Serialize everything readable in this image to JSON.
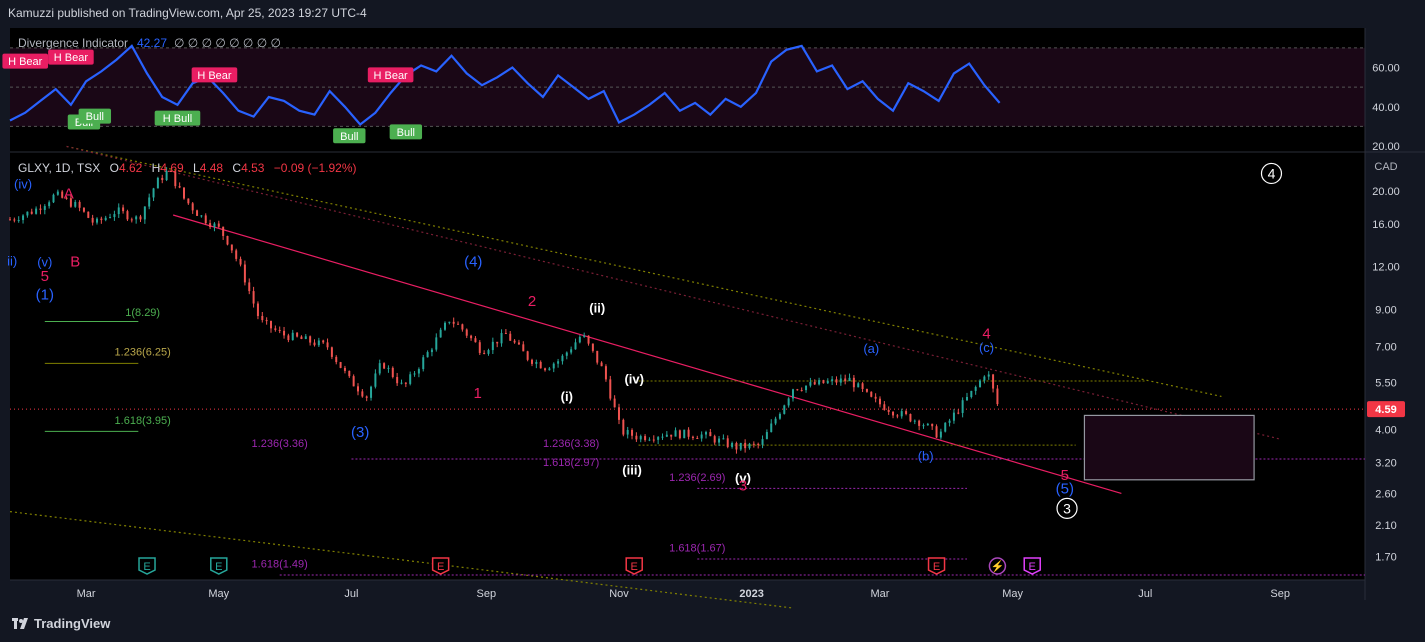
{
  "header": {
    "published": "Kamuzzi published on TradingView.com, Apr 25, 2023 19:27 UTC-4"
  },
  "footer": {
    "brand": "TradingView"
  },
  "colors": {
    "background": "#131722",
    "chart_bg": "#000000",
    "rsi_line": "#2962ff",
    "bear": "#e91e63",
    "bull": "#4caf50",
    "wave_blue": "#2962ff",
    "wave_red": "#e91e63",
    "wave_white": "#ffffff",
    "fib_green": "#4caf50",
    "fib_olive": "#808000",
    "fib_purple": "#9c27b0",
    "price_label": "#f23645"
  },
  "chart_data": [
    {
      "type": "line",
      "name": "Divergence Indicator",
      "title": "Divergence Indicator",
      "value_label": "42.27",
      "extra_values": [
        "∅",
        "∅",
        "∅",
        "∅",
        "∅",
        "∅",
        "∅",
        "∅"
      ],
      "y_ticks": [
        "60.00",
        "40.00",
        "20.00"
      ],
      "ylim": [
        18,
        74
      ],
      "levels": [
        70,
        50,
        30
      ],
      "x": [
        "2022-01-25",
        "2022-02-01",
        "2022-02-08",
        "2022-02-15",
        "2022-02-22",
        "2022-03-01",
        "2022-03-08",
        "2022-03-15",
        "2022-03-22",
        "2022-03-29",
        "2022-04-05",
        "2022-04-12",
        "2022-04-19",
        "2022-04-26",
        "2022-05-03",
        "2022-05-10",
        "2022-05-17",
        "2022-05-24",
        "2022-05-31",
        "2022-06-07",
        "2022-06-14",
        "2022-06-21",
        "2022-06-28",
        "2022-07-05",
        "2022-07-12",
        "2022-07-19",
        "2022-07-26",
        "2022-08-02",
        "2022-08-09",
        "2022-08-16",
        "2022-08-23",
        "2022-08-30",
        "2022-09-06",
        "2022-09-13",
        "2022-09-20",
        "2022-09-27",
        "2022-10-04",
        "2022-10-11",
        "2022-10-18",
        "2022-10-25",
        "2022-11-01",
        "2022-11-08",
        "2022-11-15",
        "2022-11-22",
        "2022-11-29",
        "2022-12-06",
        "2022-12-13",
        "2022-12-20",
        "2022-12-27",
        "2023-01-03",
        "2023-01-10",
        "2023-01-17",
        "2023-01-24",
        "2023-01-31",
        "2023-02-07",
        "2023-02-14",
        "2023-02-21",
        "2023-02-28",
        "2023-03-07",
        "2023-03-14",
        "2023-03-21",
        "2023-03-28",
        "2023-04-04",
        "2023-04-11",
        "2023-04-18",
        "2023-04-25"
      ],
      "values": [
        33,
        37,
        43,
        49,
        41,
        53,
        58,
        64,
        71,
        57,
        45,
        41,
        52,
        55,
        47,
        38,
        35,
        45,
        43,
        38,
        36,
        48,
        40,
        31,
        37,
        47,
        56,
        61,
        58,
        66,
        57,
        51,
        55,
        60,
        52,
        45,
        56,
        50,
        44,
        48,
        32,
        36,
        41,
        47,
        38,
        42,
        36,
        44,
        40,
        47,
        63,
        69,
        71,
        58,
        61,
        49,
        53,
        44,
        38,
        52,
        48,
        43,
        57,
        62,
        51,
        42
      ],
      "signals": [
        {
          "label": "H Bear",
          "type": "bear",
          "x": "2022-02-01",
          "y": 63
        },
        {
          "label": "H Bear",
          "type": "bear",
          "x": "2022-02-22",
          "y": 65
        },
        {
          "label": "Bull",
          "type": "bull",
          "x": "2022-02-28",
          "y": 32
        },
        {
          "label": "Bull",
          "type": "bull",
          "x": "2022-03-05",
          "y": 35
        },
        {
          "label": "H Bull",
          "type": "bull",
          "x": "2022-04-12",
          "y": 34
        },
        {
          "label": "H Bear",
          "type": "bear",
          "x": "2022-04-29",
          "y": 56
        },
        {
          "label": "H Bear",
          "type": "bear",
          "x": "2022-07-19",
          "y": 56
        },
        {
          "label": "Bull",
          "type": "bull",
          "x": "2022-06-30",
          "y": 25
        },
        {
          "label": "Bull",
          "type": "bull",
          "x": "2022-07-26",
          "y": 27
        }
      ]
    },
    {
      "type": "candlestick",
      "symbol_header": {
        "symbol": "GLXY, 1D, TSX",
        "o_label": "O",
        "o": "4.62",
        "h_label": "H",
        "h": "4.69",
        "l_label": "L",
        "l": "4.48",
        "c_label": "C",
        "c": "4.53",
        "change": "−0.09 (−1.92%)"
      },
      "currency": "CAD",
      "y_scale": "log",
      "ylim": [
        1.45,
        26
      ],
      "y_ticks": [
        "20.00",
        "16.00",
        "12.00",
        "9.00",
        "7.00",
        "5.50",
        "4.00",
        "3.20",
        "2.60",
        "2.10",
        "1.70"
      ],
      "last_price": "4.59",
      "x_ticks": [
        "Mar",
        "May",
        "Jul",
        "Sep",
        "Nov",
        "2023",
        "Mar",
        "May",
        "Jul",
        "Sep"
      ],
      "x_range": [
        "2022-01-25",
        "2023-10-10"
      ],
      "close_path": {
        "x": [
          "2022-01-25",
          "2022-02-05",
          "2022-02-15",
          "2022-02-25",
          "2022-03-05",
          "2022-03-15",
          "2022-03-25",
          "2022-04-02",
          "2022-04-08",
          "2022-04-15",
          "2022-04-22",
          "2022-05-01",
          "2022-05-06",
          "2022-05-12",
          "2022-05-20",
          "2022-05-30",
          "2022-06-10",
          "2022-06-20",
          "2022-06-30",
          "2022-07-08",
          "2022-07-15",
          "2022-07-25",
          "2022-08-05",
          "2022-08-15",
          "2022-08-20",
          "2022-08-30",
          "2022-09-10",
          "2022-09-20",
          "2022-09-28",
          "2022-10-05",
          "2022-10-15",
          "2022-10-25",
          "2022-11-02",
          "2022-11-10",
          "2022-11-25",
          "2022-12-10",
          "2022-12-25",
          "2023-01-05",
          "2023-01-20",
          "2023-02-05",
          "2023-02-15",
          "2023-02-25",
          "2023-03-08",
          "2023-03-20",
          "2023-03-28",
          "2023-04-05",
          "2023-04-15",
          "2023-04-19",
          "2023-04-25"
        ],
        "values": [
          16.5,
          17.5,
          19.5,
          18.0,
          16.0,
          17.5,
          16.5,
          21.0,
          23.0,
          19.0,
          17.0,
          15.5,
          14.0,
          11.5,
          8.3,
          7.6,
          7.3,
          7.0,
          5.6,
          5.0,
          6.3,
          5.3,
          6.7,
          8.4,
          8.0,
          6.8,
          7.6,
          6.5,
          6.1,
          6.4,
          7.6,
          5.9,
          3.95,
          3.8,
          3.9,
          3.85,
          3.55,
          3.6,
          5.3,
          5.5,
          5.6,
          4.9,
          4.5,
          4.2,
          3.85,
          4.5,
          5.4,
          6.0,
          4.53
        ]
      }
    }
  ],
  "annotations": {
    "waves": [
      {
        "text": "(iv)",
        "color": "blue",
        "x": "2022-01-31",
        "p": 20.3
      },
      {
        "text": "A",
        "color": "red",
        "x": "2022-02-21",
        "p": 19.0
      },
      {
        "text": "ii)",
        "color": "blue",
        "x": "2022-01-26",
        "p": 12.1
      },
      {
        "text": "(v)",
        "color": "blue",
        "x": "2022-02-10",
        "p": 12.0
      },
      {
        "text": "B",
        "color": "red",
        "x": "2022-02-24",
        "p": 12.0
      },
      {
        "text": "5",
        "color": "red",
        "x": "2022-02-10",
        "p": 10.9
      },
      {
        "text": "(1)",
        "color": "blue",
        "x": "2022-02-10",
        "p": 9.6
      },
      {
        "text": "(4)",
        "color": "blue",
        "x": "2022-08-26",
        "p": 12.0
      },
      {
        "text": "2",
        "color": "red",
        "x": "2022-09-22",
        "p": 9.2
      },
      {
        "text": "(ii)",
        "color": "white",
        "x": "2022-10-22",
        "p": 8.8
      },
      {
        "text": "1",
        "color": "red",
        "x": "2022-08-28",
        "p": 4.95
      },
      {
        "text": "(i)",
        "color": "white",
        "x": "2022-10-08",
        "p": 4.85
      },
      {
        "text": "(iv)",
        "color": "white",
        "x": "2022-11-08",
        "p": 5.45
      },
      {
        "text": "(3)",
        "color": "blue",
        "x": "2022-07-05",
        "p": 3.8
      },
      {
        "text": "(iii)",
        "color": "white",
        "x": "2022-11-07",
        "p": 2.95
      },
      {
        "text": "(v)",
        "color": "white",
        "x": "2022-12-28",
        "p": 2.8
      },
      {
        "text": "3",
        "color": "red",
        "x": "2022-12-28",
        "p": 2.65
      },
      {
        "text": "(a)",
        "color": "blue",
        "x": "2023-02-25",
        "p": 6.7
      },
      {
        "text": "(b)",
        "color": "blue",
        "x": "2023-03-22",
        "p": 3.25
      },
      {
        "text": "4",
        "color": "red",
        "x": "2023-04-19",
        "p": 7.4
      },
      {
        "text": "(c)",
        "color": "blue",
        "x": "2023-04-19",
        "p": 6.75
      },
      {
        "text": "5",
        "color": "red",
        "x": "2023-05-25",
        "p": 2.85
      },
      {
        "text": "(5)",
        "color": "blue",
        "x": "2023-05-25",
        "p": 2.6
      }
    ],
    "circled": [
      {
        "text": "4",
        "x": "2023-08-28",
        "p": 22.5
      },
      {
        "text": "3",
        "x": "2023-05-26",
        "p": 2.35
      }
    ],
    "fibs": [
      {
        "text": "1(8.29)",
        "color": "green",
        "x": "2022-03-27",
        "p": 8.6
      },
      {
        "text": "1.236(6.25)",
        "color": "olive",
        "x": "2022-03-27",
        "p": 6.6
      },
      {
        "text": "1.618(3.95)",
        "color": "green",
        "x": "2022-03-27",
        "p": 4.15
      },
      {
        "text": "1.236(3.36)",
        "color": "purple",
        "x": "2022-05-29",
        "p": 3.55
      },
      {
        "text": "1.618(1.49)",
        "color": "purple",
        "x": "2022-05-29",
        "p": 1.58
      },
      {
        "text": "1.236(3.38)",
        "color": "purple",
        "x": "2022-10-10",
        "p": 3.55
      },
      {
        "text": "1.618(2.97)",
        "color": "purple",
        "x": "2022-10-10",
        "p": 3.13
      },
      {
        "text": "1.236(2.69)",
        "color": "purple",
        "x": "2022-12-07",
        "p": 2.83
      },
      {
        "text": "1.618(1.67)",
        "color": "purple",
        "x": "2022-12-07",
        "p": 1.76
      }
    ],
    "events": [
      {
        "label": "E",
        "type": "earnings-past",
        "x": "2022-03-29"
      },
      {
        "label": "E",
        "type": "earnings-past",
        "x": "2022-05-01"
      },
      {
        "label": "E",
        "type": "earnings",
        "x": "2022-08-11"
      },
      {
        "label": "E",
        "type": "earnings",
        "x": "2022-11-08"
      },
      {
        "label": "E",
        "type": "earnings",
        "x": "2023-03-27"
      },
      {
        "label": "⚡",
        "type": "split",
        "x": "2023-04-24"
      },
      {
        "label": "E",
        "type": "earnings-future",
        "x": "2023-05-10"
      }
    ]
  }
}
